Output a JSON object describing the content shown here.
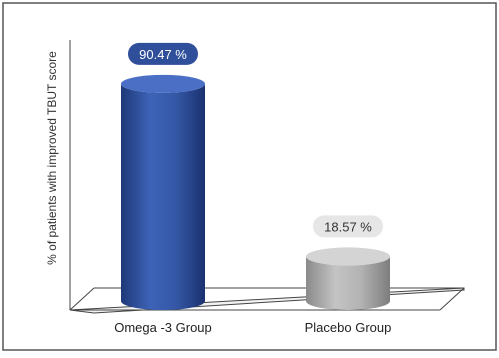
{
  "chart_data": {
    "type": "bar",
    "style": "3d-cylinder",
    "categories": [
      "Omega -3 Group",
      "Placebo Group"
    ],
    "values": [
      90.47,
      18.57
    ],
    "value_labels": [
      "90.47 %",
      "18.57 %"
    ],
    "ylabel": "% of patients with improved TBUT score",
    "ylim": [
      0,
      100
    ],
    "grid": false,
    "legend": "none",
    "colors": {
      "omega": "#2f4f9a",
      "placebo": "#a3a3a3",
      "omega_label_bg": "#2f4f9a",
      "placebo_label_bg": "#e6e6e6"
    }
  }
}
